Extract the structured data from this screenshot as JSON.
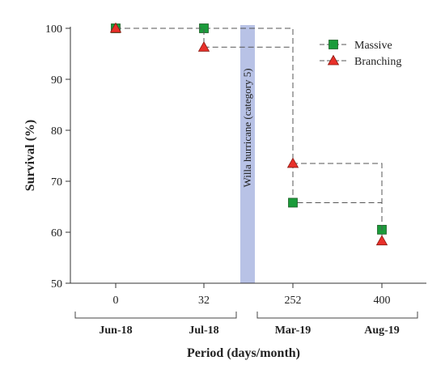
{
  "chart_data": {
    "type": "line",
    "step": true,
    "xlabel": "Period (days/month)",
    "ylabel": "Survival (%)",
    "ylim": [
      50,
      100
    ],
    "yticks": [
      50,
      60,
      70,
      80,
      90,
      100
    ],
    "categories": [
      "0",
      "32",
      "252",
      "400"
    ],
    "groups": [
      "Jun-18",
      "Jul-18",
      "Mar-19",
      "Aug-19"
    ],
    "series": [
      {
        "name": "Massive",
        "marker": "square",
        "color": "#1a9b3a",
        "values": [
          100,
          100,
          65.8,
          60.5
        ]
      },
      {
        "name": "Branching",
        "marker": "triangle",
        "color": "#e8302a",
        "values": [
          100,
          96.3,
          73.5,
          58.3
        ]
      }
    ],
    "event": {
      "label": "Willa hurricane (category 5)",
      "between": [
        "32",
        "252"
      ],
      "color": "#b8c2e6"
    },
    "legend": "top-right",
    "grid": false
  }
}
